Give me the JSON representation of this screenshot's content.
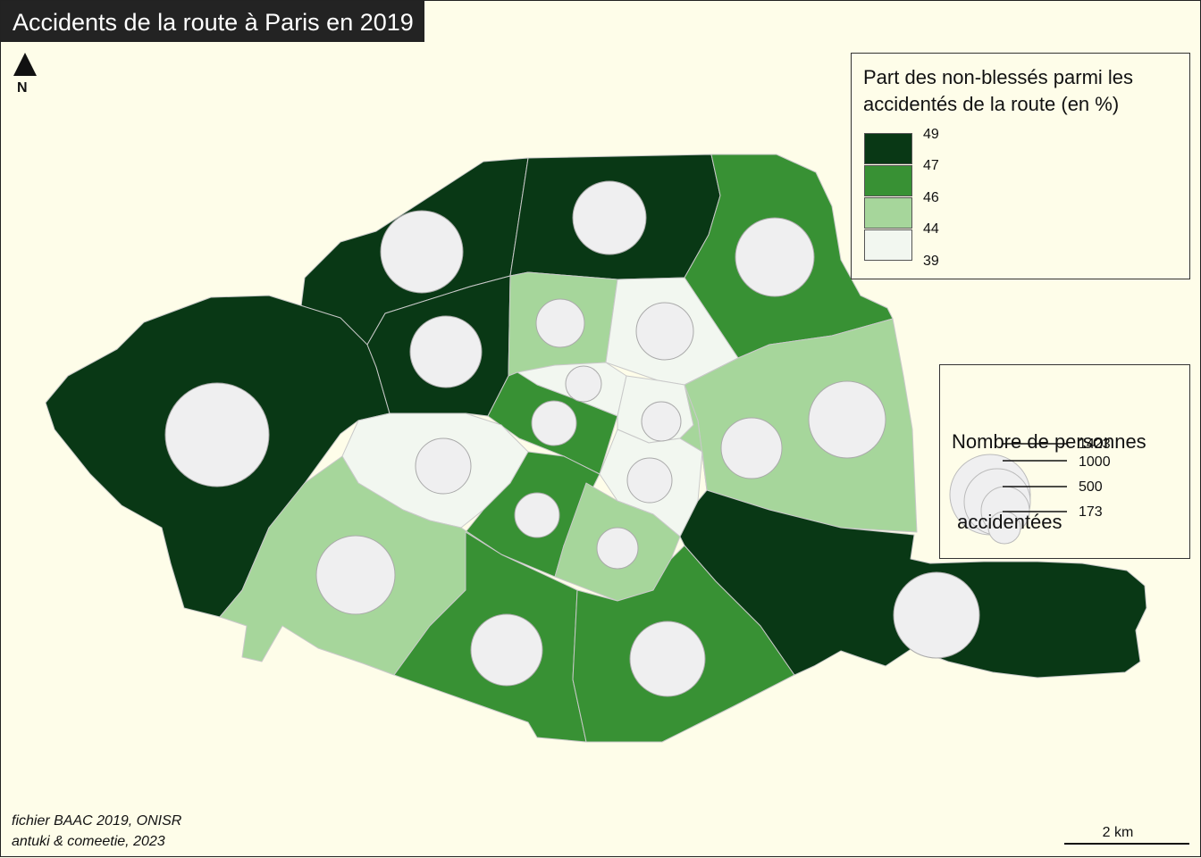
{
  "title": "Accidents de la route à Paris en 2019",
  "north_label": "N",
  "legend_choropleth": {
    "title_line1": "Part des non-blessés parmi les",
    "title_line2": "accidentés de la route (en %)",
    "breaks": [
      "49",
      "47",
      "46",
      "44",
      "39"
    ],
    "colors": [
      "#093815",
      "#389134",
      "#a6d69b",
      "#f2f7f0"
    ]
  },
  "legend_proportional": {
    "title_line1": "Nombre de personnes",
    "title_line2": " accidentées",
    "values": [
      "1423",
      "1000",
      "500",
      "173"
    ]
  },
  "source_line1": "fichier BAAC 2019, ONISR",
  "source_line2": "antuki & comeetie, 2023",
  "scale_label": "2 km",
  "colors": {
    "background": "#fefde9",
    "circle_fill": "#efeff0",
    "title_bar": "#232323"
  }
}
